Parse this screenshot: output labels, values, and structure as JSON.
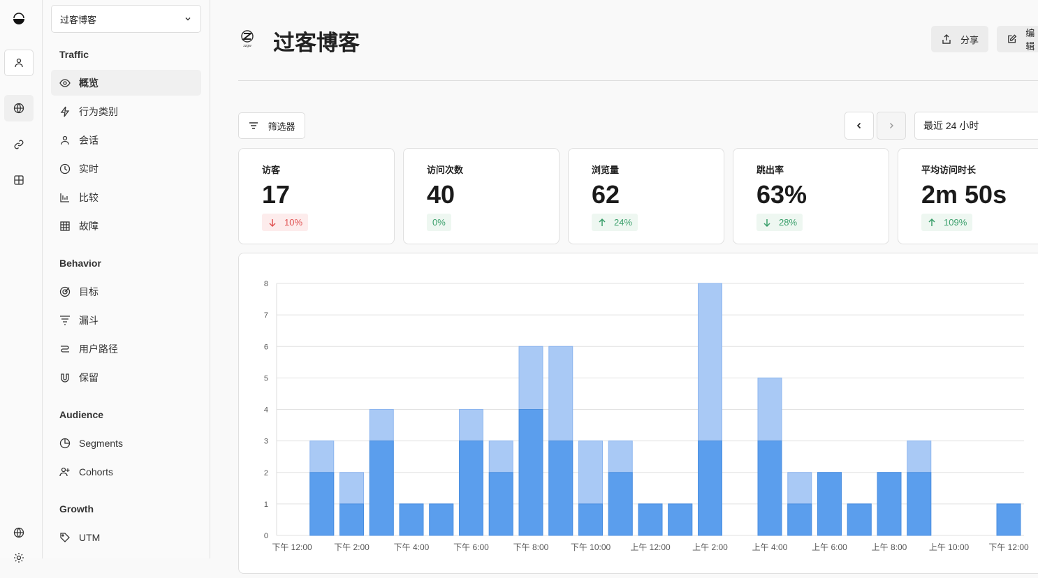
{
  "rail": {
    "icons": [
      "logo-icon",
      "user-icon",
      "globe-icon",
      "link-icon",
      "grid-icon",
      "globe-icon",
      "settings-icon"
    ]
  },
  "sidebar": {
    "site": "过客博客",
    "groups": [
      {
        "label": "Traffic",
        "items": [
          {
            "label": "概览",
            "icon": "eye-icon",
            "active": true
          },
          {
            "label": "行为类别",
            "icon": "bolt-icon"
          },
          {
            "label": "会话",
            "icon": "user-icon"
          },
          {
            "label": "实时",
            "icon": "clock-icon"
          },
          {
            "label": "比较",
            "icon": "bar-compare-icon"
          },
          {
            "label": "故障",
            "icon": "table-icon"
          }
        ]
      },
      {
        "label": "Behavior",
        "items": [
          {
            "label": "目标",
            "icon": "target-icon"
          },
          {
            "label": "漏斗",
            "icon": "funnel-icon"
          },
          {
            "label": "用户路径",
            "icon": "path-icon"
          },
          {
            "label": "保留",
            "icon": "magnet-icon"
          }
        ]
      },
      {
        "label": "Audience",
        "items": [
          {
            "label": "Segments",
            "icon": "pie-icon"
          },
          {
            "label": "Cohorts",
            "icon": "user-plus-icon"
          }
        ]
      },
      {
        "label": "Growth",
        "items": [
          {
            "label": "UTM",
            "icon": "tag-icon"
          }
        ]
      }
    ]
  },
  "header": {
    "title": "过客博客",
    "share": "分享",
    "edit": "编辑"
  },
  "toolbar": {
    "filter": "筛选器",
    "range": "最近 24 小时"
  },
  "metrics": [
    {
      "label": "访客",
      "value": "17",
      "change": "10%",
      "dir": "down"
    },
    {
      "label": "访问次数",
      "value": "40",
      "change": "0%",
      "dir": "none"
    },
    {
      "label": "浏览量",
      "value": "62",
      "change": "24%",
      "dir": "up"
    },
    {
      "label": "跳出率",
      "value": "63%",
      "change": "28%",
      "dir": "down-good"
    },
    {
      "label": "平均访问时长",
      "value": "2m 50s",
      "change": "109%",
      "dir": "up"
    }
  ],
  "chart_data": {
    "type": "bar",
    "stacked": false,
    "x": [
      "下午 12:00",
      "下午 1:00",
      "下午 2:00",
      "下午 3:00",
      "下午 4:00",
      "下午 5:00",
      "下午 6:00",
      "下午 7:00",
      "下午 8:00",
      "下午 9:00",
      "下午 10:00",
      "下午 11:00",
      "上午 12:00",
      "上午 1:00",
      "上午 2:00",
      "上午 3:00",
      "上午 4:00",
      "上午 5:00",
      "上午 6:00",
      "上午 7:00",
      "上午 8:00",
      "上午 9:00",
      "上午 10:00",
      "上午 11:00",
      "下午 12:00"
    ],
    "xticks": [
      "下午 12:00",
      "下午 2:00",
      "下午 4:00",
      "下午 6:00",
      "下午 8:00",
      "下午 10:00",
      "上午 12:00",
      "上午 2:00",
      "上午 4:00",
      "上午 6:00",
      "上午 8:00",
      "上午 10:00",
      "下午 12:00"
    ],
    "series": [
      {
        "values": [
          0,
          3,
          2,
          4,
          1,
          1,
          4,
          3,
          6,
          6,
          3,
          3,
          1,
          1,
          8,
          0,
          5,
          2,
          2,
          1,
          2,
          3,
          0,
          0,
          1
        ],
        "color": "#a9c9f5"
      },
      {
        "values": [
          0,
          2,
          1,
          3,
          1,
          1,
          3,
          2,
          4,
          3,
          1,
          2,
          1,
          1,
          3,
          0,
          3,
          1,
          2,
          1,
          2,
          2,
          0,
          0,
          1
        ],
        "color": "#5b9eed"
      }
    ],
    "ylim": [
      0,
      8
    ],
    "yticks": [
      0,
      1,
      2,
      3,
      4,
      5,
      6,
      7,
      8
    ],
    "grid": true
  }
}
